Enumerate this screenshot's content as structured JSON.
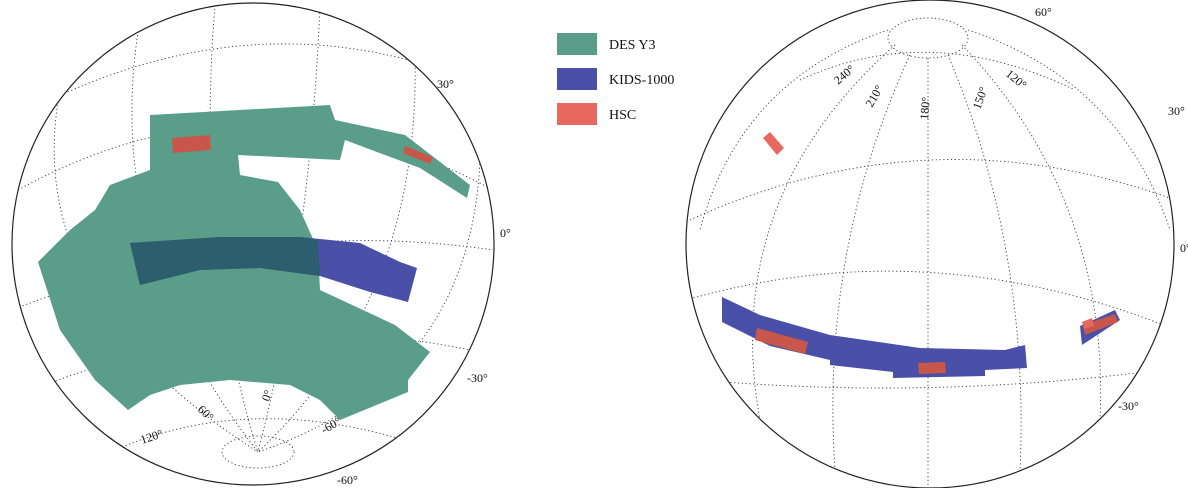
{
  "colors": {
    "des": "#5a9e8a",
    "kids": "#4a4fa8",
    "hsc": "#e8675f",
    "graticule": "#333333"
  },
  "legend": [
    {
      "label": "DES Y3",
      "color": "#5a9e8a"
    },
    {
      "label": "KIDS-1000",
      "color": "#4a4fa8"
    },
    {
      "label": "HSC",
      "color": "#e8675f"
    }
  ],
  "left_globe": {
    "lat_labels": [
      "30°",
      "0°",
      "-30°",
      "-60°"
    ],
    "lon_labels": [
      "120°",
      "60°",
      "0°",
      "-60°"
    ]
  },
  "right_globe": {
    "lat_labels": [
      "60°",
      "30°",
      "0°",
      "-30°"
    ],
    "lon_labels": [
      "240°",
      "210°",
      "180°",
      "150°",
      "120°"
    ]
  }
}
